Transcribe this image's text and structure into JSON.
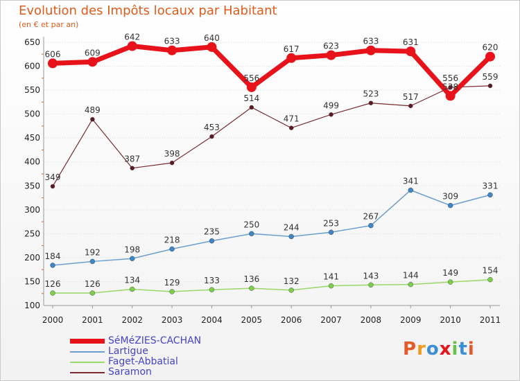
{
  "title": "Evolution des Impôts locaux par Habitant",
  "subtitle": "(en € et par an)",
  "logo": "Proxiti",
  "chart_data": {
    "type": "line",
    "title": "Evolution des Impôts locaux par Habitant",
    "subtitle": "(en € et par an)",
    "xlabel": "",
    "ylabel": "",
    "x": [
      "2000",
      "2001",
      "2002",
      "2003",
      "2004",
      "2005",
      "2006",
      "2007",
      "2008",
      "2009",
      "2010",
      "2011"
    ],
    "yticks": [
      100,
      150,
      200,
      250,
      300,
      350,
      400,
      450,
      500,
      550,
      600,
      650
    ],
    "ylim": [
      100,
      650
    ],
    "grid": "horizontal",
    "legend_position": "bottom",
    "series": [
      {
        "name": "SéMéZIES-CACHAN",
        "color": "#e8121b",
        "width": 7,
        "marker": 7,
        "marker_color": "#e8121b",
        "values": [
          606,
          609,
          642,
          633,
          640,
          556,
          617,
          623,
          633,
          631,
          538,
          620
        ]
      },
      {
        "name": "Lartigue",
        "color": "#6a9ecf",
        "width": 1.5,
        "marker": 3.5,
        "marker_color": "#3f86c6",
        "values": [
          184,
          192,
          198,
          218,
          235,
          250,
          244,
          253,
          267,
          341,
          309,
          331
        ]
      },
      {
        "name": "Faget-Abbatial",
        "color": "#99d86a",
        "width": 1.5,
        "marker": 3.5,
        "marker_color": "#7ccf4b",
        "values": [
          126,
          126,
          134,
          129,
          133,
          136,
          132,
          141,
          143,
          144,
          149,
          154
        ]
      },
      {
        "name": "Saramon",
        "color": "#7b2a2f",
        "width": 1.2,
        "marker": 3,
        "marker_color": "#5e1a22",
        "values": [
          349,
          489,
          387,
          398,
          453,
          514,
          471,
          499,
          523,
          517,
          556,
          559
        ]
      }
    ]
  },
  "logo_colors": [
    "#e35a2a",
    "#f29a1f",
    "#3c8fd6",
    "#e8121b",
    "#6ac04a",
    "#3c8fd6",
    "#e35a2a"
  ]
}
